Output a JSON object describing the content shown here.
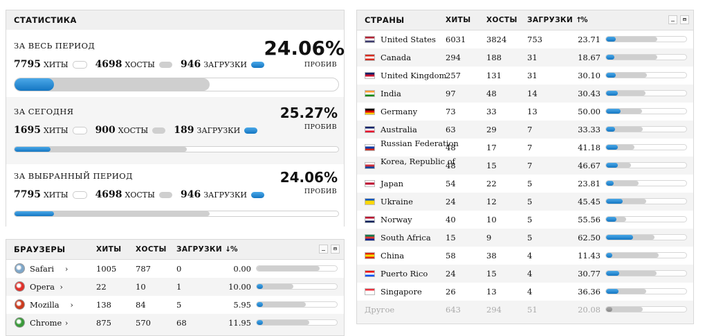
{
  "stats": {
    "title": "СТАТИСТИКА",
    "sections": [
      {
        "label": "ЗА ВЕСЬ ПЕРИОД",
        "hits": "7795",
        "hits_label": "ХИТЫ",
        "hosts": "4698",
        "hosts_label": "ХОСТЫ",
        "downloads": "946",
        "downloads_label": "ЗАГРУЗКИ",
        "pct": "24.06%",
        "pct_label": "ПРОБИВ",
        "hosts_ratio": 0.6027,
        "downloads_ratio": 0.1214
      },
      {
        "label": "ЗА СЕГОДНЯ",
        "hits": "1695",
        "hits_label": "ХИТЫ",
        "hosts": "900",
        "hosts_label": "ХОСТЫ",
        "downloads": "189",
        "downloads_label": "ЗАГРУЗКИ",
        "pct": "25.27%",
        "pct_label": "ПРОБИВ",
        "hosts_ratio": 0.531,
        "downloads_ratio": 0.1115
      },
      {
        "label": "ЗА ВЫБРАННЫЙ ПЕРИОД",
        "hits": "7795",
        "hits_label": "ХИТЫ",
        "hosts": "4698",
        "hosts_label": "ХОСТЫ",
        "downloads": "946",
        "downloads_label": "ЗАГРУЗКИ",
        "pct": "24.06%",
        "pct_label": "ПРОБИВ",
        "hosts_ratio": 0.6027,
        "downloads_ratio": 0.1214
      }
    ]
  },
  "browsers": {
    "title": "БРАУЗЕРЫ",
    "columns": {
      "hits": "ХИТЫ",
      "hosts": "ХОСТЫ",
      "downloads": "ЗАГРУЗКИ ↓",
      "pct": "%"
    },
    "rows": [
      {
        "name": "Safari",
        "icon": "safari-icon",
        "color": "#7fa7c9",
        "hits": "1005",
        "hosts": "787",
        "downloads": "0",
        "pct": "0.00",
        "hosts_ratio": 0.783,
        "downloads_ratio": 0.0
      },
      {
        "name": "Opera",
        "icon": "opera-icon",
        "color": "#e0302a",
        "hits": "22",
        "hosts": "10",
        "downloads": "1",
        "pct": "10.00",
        "hosts_ratio": 0.4545,
        "downloads_ratio": 0.0455
      },
      {
        "name": "Mozilla",
        "icon": "mozilla-icon",
        "color": "#cc3a1e",
        "hits": "138",
        "hosts": "84",
        "downloads": "5",
        "pct": "5.95",
        "hosts_ratio": 0.6087,
        "downloads_ratio": 0.0362
      },
      {
        "name": "Chrome",
        "icon": "chrome-icon",
        "color": "#3a9a3a",
        "hits": "875",
        "hosts": "570",
        "downloads": "68",
        "pct": "11.95",
        "hosts_ratio": 0.6514,
        "downloads_ratio": 0.0777
      }
    ]
  },
  "countries": {
    "title": "СТРАНЫ",
    "columns": {
      "hits": "ХИТЫ",
      "hosts": "ХОСТЫ",
      "downloads": "ЗАГРУЗКИ ↑",
      "pct": "%"
    },
    "rows": [
      {
        "name": "United States",
        "flag": "us-flag",
        "colors": [
          "#b22234",
          "#fff",
          "#3c3b6e"
        ],
        "hits": "6031",
        "hosts": "3824",
        "downloads": "753",
        "pct": "23.71",
        "hosts_ratio": 0.634,
        "downloads_ratio": 0.1249
      },
      {
        "name": "Canada",
        "flag": "ca-flag",
        "colors": [
          "#d52b1e",
          "#fff",
          "#d52b1e"
        ],
        "hits": "294",
        "hosts": "188",
        "downloads": "31",
        "pct": "18.67",
        "hosts_ratio": 0.6395,
        "downloads_ratio": 0.1054
      },
      {
        "name": "United Kingdom",
        "flag": "gb-flag",
        "colors": [
          "#012169",
          "#c8102e",
          "#fff"
        ],
        "hits": "257",
        "hosts": "131",
        "downloads": "31",
        "pct": "30.10",
        "hosts_ratio": 0.5097,
        "downloads_ratio": 0.1206
      },
      {
        "name": "India",
        "flag": "in-flag",
        "colors": [
          "#ff9933",
          "#fff",
          "#138808"
        ],
        "hits": "97",
        "hosts": "48",
        "downloads": "14",
        "pct": "30.43",
        "hosts_ratio": 0.4948,
        "downloads_ratio": 0.1443
      },
      {
        "name": "Germany",
        "flag": "de-flag",
        "colors": [
          "#000",
          "#dd0000",
          "#ffce00"
        ],
        "hits": "73",
        "hosts": "33",
        "downloads": "13",
        "pct": "50.00",
        "hosts_ratio": 0.452,
        "downloads_ratio": 0.1781
      },
      {
        "name": "Australia",
        "flag": "au-flag",
        "colors": [
          "#012169",
          "#fff",
          "#e4002b"
        ],
        "hits": "63",
        "hosts": "29",
        "downloads": "7",
        "pct": "33.33",
        "hosts_ratio": 0.4603,
        "downloads_ratio": 0.1111
      },
      {
        "name": "Russian Federation",
        "flag": "ru-flag",
        "colors": [
          "#fff",
          "#0039a6",
          "#d52b1e"
        ],
        "hits": "48",
        "hosts": "17",
        "downloads": "7",
        "pct": "41.18",
        "hosts_ratio": 0.3542,
        "downloads_ratio": 0.1458
      },
      {
        "name": "Korea, Republic of",
        "flag": "kr-flag",
        "colors": [
          "#fff",
          "#cd2e3a",
          "#0047a0"
        ],
        "hits": "48",
        "hosts": "15",
        "downloads": "7",
        "pct": "46.67",
        "hosts_ratio": 0.3125,
        "downloads_ratio": 0.1458
      },
      {
        "name": "Japan",
        "flag": "jp-flag",
        "colors": [
          "#fff",
          "#bc002d",
          "#fff"
        ],
        "hits": "54",
        "hosts": "22",
        "downloads": "5",
        "pct": "23.81",
        "hosts_ratio": 0.4074,
        "downloads_ratio": 0.0926
      },
      {
        "name": "Ukraine",
        "flag": "ua-flag",
        "colors": [
          "#0057b7",
          "#ffd700",
          "#ffd700"
        ],
        "hits": "24",
        "hosts": "12",
        "downloads": "5",
        "pct": "45.45",
        "hosts_ratio": 0.5,
        "downloads_ratio": 0.2083
      },
      {
        "name": "Norway",
        "flag": "no-flag",
        "colors": [
          "#ba0c2f",
          "#fff",
          "#00205b"
        ],
        "hits": "40",
        "hosts": "10",
        "downloads": "5",
        "pct": "55.56",
        "hosts_ratio": 0.25,
        "downloads_ratio": 0.125
      },
      {
        "name": "South Africa",
        "flag": "za-flag",
        "colors": [
          "#007a4d",
          "#de3831",
          "#002395"
        ],
        "hits": "15",
        "hosts": "9",
        "downloads": "5",
        "pct": "62.50",
        "hosts_ratio": 0.6,
        "downloads_ratio": 0.3333
      },
      {
        "name": "China",
        "flag": "cn-flag",
        "colors": [
          "#de2910",
          "#ffde00",
          "#de2910"
        ],
        "hits": "58",
        "hosts": "38",
        "downloads": "4",
        "pct": "11.43",
        "hosts_ratio": 0.6552,
        "downloads_ratio": 0.069
      },
      {
        "name": "Puerto Rico",
        "flag": "pr-flag",
        "colors": [
          "#ed0000",
          "#fff",
          "#0050f0"
        ],
        "hits": "24",
        "hosts": "15",
        "downloads": "4",
        "pct": "30.77",
        "hosts_ratio": 0.625,
        "downloads_ratio": 0.1667
      },
      {
        "name": "Singapore",
        "flag": "sg-flag",
        "colors": [
          "#ef3340",
          "#fff",
          "#fff"
        ],
        "hits": "26",
        "hosts": "13",
        "downloads": "4",
        "pct": "36.36",
        "hosts_ratio": 0.5,
        "downloads_ratio": 0.1538
      },
      {
        "name": "Другое",
        "flag": "",
        "colors": [],
        "hits": "643",
        "hosts": "294",
        "downloads": "51",
        "pct": "20.08",
        "hosts_ratio": 0.4572,
        "downloads_ratio": 0.0793
      }
    ]
  }
}
